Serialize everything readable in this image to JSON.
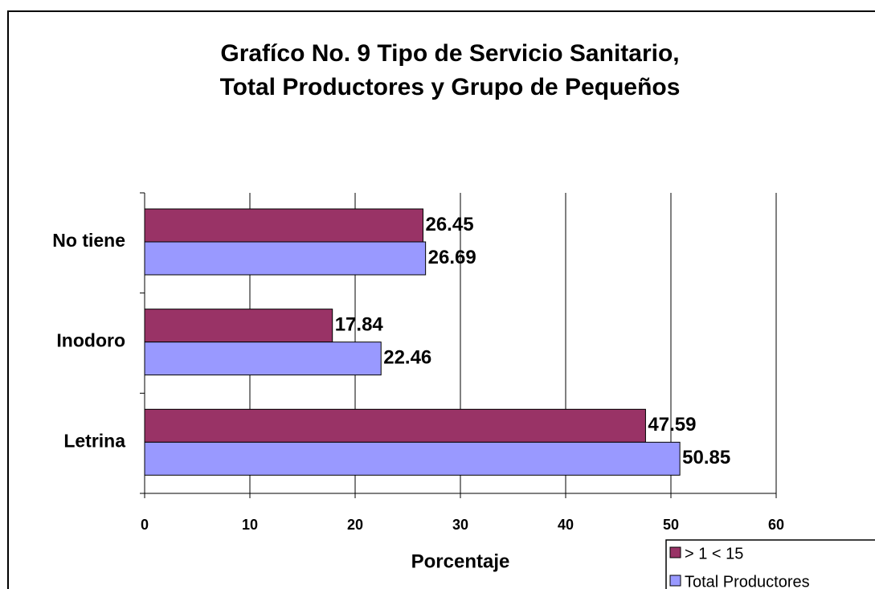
{
  "chart_data": {
    "type": "hbar",
    "title": [
      "Grafíco No. 9 Tipo de Servicio Sanitario,",
      "Total  Productores y  Grupo de Pequeños"
    ],
    "categories": [
      "No tiene",
      "Inodoro",
      "Letrina"
    ],
    "series": [
      {
        "name": "> 1 < 15",
        "color": "#993366",
        "values": [
          26.45,
          17.84,
          47.59
        ]
      },
      {
        "name": "Total Productores",
        "color": "#9999ff",
        "values": [
          26.69,
          22.46,
          50.85
        ]
      }
    ],
    "x_label": "Porcentaje",
    "xlim": [
      0,
      60
    ],
    "xticks": [
      0,
      10,
      20,
      30,
      40,
      50,
      60
    ],
    "grid": true
  }
}
